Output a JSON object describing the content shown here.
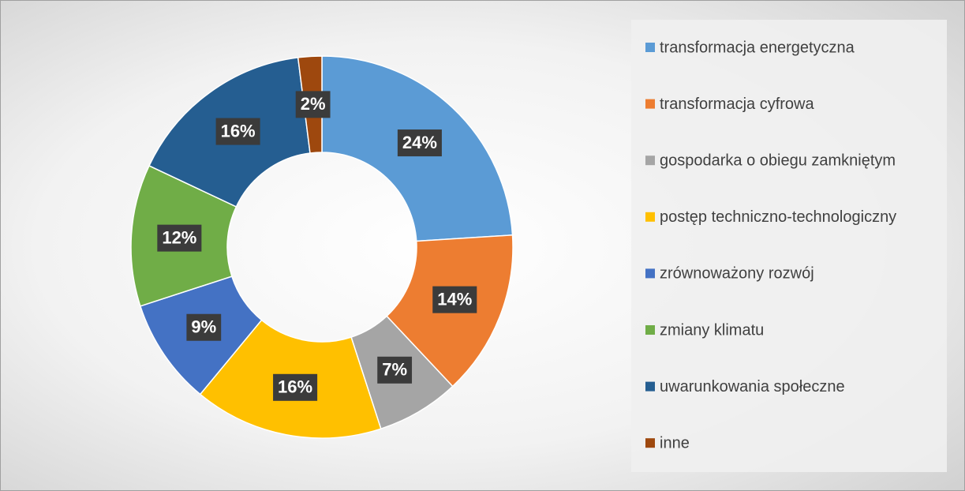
{
  "chart_data": {
    "type": "donut",
    "categories": [
      "transformacja energetyczna",
      "transformacja cyfrowa",
      "gospodarka o obiegu zamkniętym",
      "postęp techniczno-technologiczny",
      "zrównoważony rozwój",
      "zmiany klimatu",
      "uwarunkowania społeczne",
      "inne"
    ],
    "values": [
      24,
      14,
      7,
      16,
      9,
      12,
      16,
      2
    ],
    "value_labels": [
      "24%",
      "14%",
      "7%",
      "16%",
      "9%",
      "12%",
      "16%",
      "2%"
    ],
    "colors": [
      "#5b9bd5",
      "#ed7d31",
      "#a5a5a5",
      "#ffc000",
      "#4472c4",
      "#70ad47",
      "#255e91",
      "#9e480e"
    ],
    "legend": "right"
  }
}
